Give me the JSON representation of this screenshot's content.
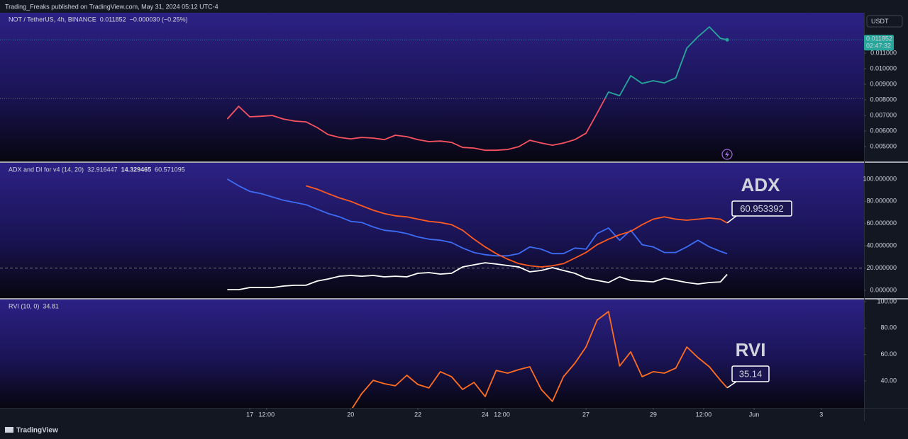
{
  "header": {
    "publisher": "Trading_Freaks published on TradingView.com, May 31, 2024 05:12 UTC-4"
  },
  "footer": {
    "brand": "TradingView"
  },
  "chart_data": [
    {
      "type": "line",
      "title": "NOT / TetherUS, 4h, BINANCE",
      "legend_values": [
        "0.011852",
        "−0.000030 (−0.25%)"
      ],
      "legend_color": "#26a69a",
      "currency": "USDT",
      "price_badge": "0.011852",
      "countdown": "02:47:32",
      "reference_line": 0.00809,
      "xlim": [
        9.57,
        35.27
      ],
      "ylim": [
        0.00405,
        0.01359
      ],
      "yticks": [
        {
          "value": 0.005,
          "label": "0.005000"
        },
        {
          "value": 0.006,
          "label": "0.006000"
        },
        {
          "value": 0.007,
          "label": "0.007000"
        },
        {
          "value": 0.008,
          "label": "0.008000"
        },
        {
          "value": 0.009,
          "label": "0.009000"
        },
        {
          "value": 0.01,
          "label": "0.010000"
        },
        {
          "value": 0.011,
          "label": "0.011000"
        }
      ],
      "grid": false,
      "x": [
        16.33,
        16.67,
        17,
        17.33,
        17.67,
        18,
        18.33,
        18.67,
        19,
        19.33,
        19.67,
        20,
        20.33,
        20.67,
        21,
        21.33,
        21.67,
        22,
        22.33,
        22.67,
        23,
        23.33,
        23.67,
        24,
        24.33,
        24.67,
        25,
        25.33,
        25.67,
        26,
        26.33,
        26.67,
        27,
        27.33,
        27.67,
        28,
        28.33,
        28.67,
        29,
        29.33,
        29.67,
        30,
        30.33,
        30.67,
        31,
        31.2
      ],
      "series": [
        {
          "color": "#26a69a",
          "color_low": "#f7525f",
          "values": [
            0.00677,
            0.00759,
            0.00691,
            0.00695,
            0.007,
            0.00677,
            0.00664,
            0.00659,
            0.00623,
            0.00577,
            0.00559,
            0.0055,
            0.00559,
            0.00555,
            0.00545,
            0.00573,
            0.00564,
            0.00545,
            0.00532,
            0.00536,
            0.00527,
            0.00495,
            0.00491,
            0.00477,
            0.00477,
            0.00482,
            0.005,
            0.00541,
            0.00523,
            0.00509,
            0.00523,
            0.00545,
            0.00586,
            0.00714,
            0.0085,
            0.00827,
            0.00955,
            0.00905,
            0.00923,
            0.00909,
            0.00941,
            0.01132,
            0.01205,
            0.01268,
            0.01195,
            0.011852
          ]
        }
      ]
    },
    {
      "type": "line",
      "title": "ADX and DI for v4 (14, 20)",
      "annotation": {
        "title": "ADX",
        "value": "60.953392"
      },
      "level_line": 20,
      "xlim": [
        9.57,
        35.27
      ],
      "ylim": [
        -7.0,
        114.6
      ],
      "yticks": [
        {
          "value": 0,
          "label": "0.000000"
        },
        {
          "value": 20,
          "label": "20.000000"
        },
        {
          "value": 40,
          "label": "40.000000"
        },
        {
          "value": 60,
          "label": "60.000000"
        },
        {
          "value": 80,
          "label": "80.000000"
        },
        {
          "value": 100,
          "label": "100.000000"
        }
      ],
      "grid": false,
      "x": [
        16.33,
        16.67,
        17,
        17.33,
        17.67,
        18,
        18.33,
        18.67,
        19,
        19.33,
        19.67,
        20,
        20.33,
        20.67,
        21,
        21.33,
        21.67,
        22,
        22.33,
        22.67,
        23,
        23.33,
        23.67,
        24,
        24.33,
        24.67,
        25,
        25.33,
        25.67,
        26,
        26.33,
        26.67,
        27,
        27.33,
        27.67,
        28,
        28.33,
        28.67,
        29,
        29.33,
        29.67,
        30,
        30.33,
        30.67,
        31,
        31.2
      ],
      "series": [
        {
          "color": "#3d6cf5",
          "last_label": "32.916447",
          "values": [
            100,
            94,
            89,
            87,
            84,
            81,
            79,
            77,
            73,
            69,
            66,
            62,
            61,
            57,
            54,
            53,
            51,
            48,
            46,
            45,
            43,
            38,
            34,
            32,
            31,
            31,
            33,
            39,
            37,
            33,
            33,
            38,
            37,
            51,
            56,
            45,
            54,
            41,
            39,
            34,
            34,
            39,
            45,
            39,
            35,
            32.92
          ]
        },
        {
          "color": "#ffffff",
          "last_label": "14.329465",
          "values": [
            0.6,
            0.6,
            2.5,
            2.5,
            2.5,
            3.8,
            4.5,
            4.5,
            8.3,
            10.2,
            12.7,
            13.4,
            12.7,
            13.4,
            12.1,
            12.7,
            12.1,
            15.3,
            15.9,
            14.6,
            15.3,
            21,
            22.9,
            24.8,
            23.6,
            22.3,
            21,
            16.6,
            17.8,
            20.4,
            17.8,
            15.3,
            10.8,
            8.9,
            7,
            12.1,
            8.9,
            8.3,
            7.6,
            10.8,
            8.9,
            7,
            5.7,
            7,
            7.6,
            14.33
          ]
        },
        {
          "color": "#ff5a1f",
          "last_label": "60.571095",
          "values": [
            null,
            null,
            null,
            null,
            null,
            null,
            null,
            94,
            91,
            87,
            83,
            80,
            76,
            72,
            69,
            67,
            66,
            64,
            62,
            61,
            59,
            54,
            46,
            39,
            33,
            28,
            24,
            22,
            21,
            22,
            24,
            29,
            34,
            41,
            46,
            50,
            53,
            59,
            64,
            66,
            64,
            63,
            64,
            65,
            64,
            60.57
          ]
        }
      ]
    },
    {
      "type": "line",
      "title": "RVI (10, 0)",
      "annotation": {
        "title": "RVI",
        "value": "35.14"
      },
      "xlim": [
        9.57,
        35.27
      ],
      "ylim": [
        19.65,
        101.6
      ],
      "yticks": [
        {
          "value": 40,
          "label": "40.00"
        },
        {
          "value": 60,
          "label": "60.00"
        },
        {
          "value": 80,
          "label": "80.00"
        },
        {
          "value": 100,
          "label": "100.00"
        }
      ],
      "xticks": [
        17,
        {
          "value": 17.5,
          "label": "12:00"
        },
        20,
        22,
        24,
        {
          "value": 24.5,
          "label": "12:00"
        },
        27,
        29,
        {
          "value": 30.5,
          "label": "12:00"
        },
        {
          "value": 32,
          "label": "Jun"
        },
        {
          "value": 34,
          "label": "3"
        }
      ],
      "grid": false,
      "x": [
        16.33,
        16.67,
        17,
        17.33,
        17.67,
        18,
        18.33,
        18.67,
        19,
        19.33,
        19.67,
        20,
        20.33,
        20.67,
        21,
        21.33,
        21.67,
        22,
        22.33,
        22.67,
        23,
        23.33,
        23.67,
        24,
        24.33,
        24.67,
        25,
        25.33,
        25.67,
        26,
        26.33,
        26.67,
        27,
        27.33,
        27.67,
        28,
        28.33,
        28.67,
        29,
        29.33,
        29.67,
        30,
        30.33,
        30.67,
        31,
        31.2
      ],
      "series": [
        {
          "color": "#ff6d1f",
          "last_label": "34.81",
          "values": [
            null,
            null,
            null,
            null,
            null,
            null,
            null,
            null,
            null,
            null,
            null,
            17.5,
            30.4,
            40.5,
            37.9,
            36.3,
            44.3,
            37.3,
            34.7,
            47,
            43.2,
            33.6,
            38.9,
            28.2,
            48,
            45.9,
            48.6,
            50.7,
            33.6,
            24.5,
            43.2,
            53.4,
            65.7,
            86,
            92.5,
            51.3,
            62,
            43.2,
            47,
            45.9,
            49.7,
            65.7,
            57.7,
            50.7,
            40.5,
            34.81
          ]
        }
      ]
    }
  ]
}
